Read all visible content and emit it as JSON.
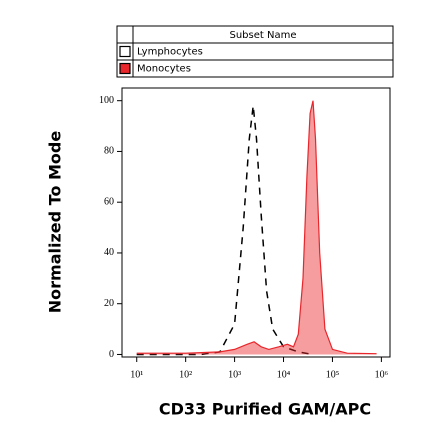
{
  "chart_data": {
    "type": "histogram-overlay",
    "xlabel": "CD33 Purified GAM/APC",
    "ylabel": "Normalized To Mode",
    "legend_title": "Subset Name",
    "xscale": "log",
    "xlim": [
      5,
      1500000
    ],
    "ylim": [
      -1,
      105
    ],
    "xticks": [
      {
        "value": 10,
        "label": "10¹"
      },
      {
        "value": 100,
        "label": "10²"
      },
      {
        "value": 1000,
        "label": "10³"
      },
      {
        "value": 10000,
        "label": "10⁴"
      },
      {
        "value": 100000,
        "label": "10⁵"
      },
      {
        "value": 1000000,
        "label": "10⁶"
      }
    ],
    "yticks": [
      0,
      20,
      40,
      60,
      80,
      100
    ],
    "series": [
      {
        "name": "Lymphocytes",
        "color": "#000000",
        "style": "dashed",
        "fill": false,
        "x": [
          10,
          200,
          500,
          1000,
          1500,
          2000,
          2400,
          2800,
          3500,
          4500,
          6000,
          10000,
          20000,
          40000
        ],
        "values": [
          0,
          0,
          1,
          12,
          50,
          85,
          98,
          85,
          55,
          25,
          10,
          3,
          1,
          0
        ]
      },
      {
        "name": "Monocytes",
        "color": "#e8262b",
        "style": "solid",
        "fill": true,
        "x": [
          10,
          100,
          500,
          1000,
          1800,
          2500,
          3500,
          5000,
          8000,
          12000,
          16000,
          20000,
          25000,
          30000,
          35000,
          40000,
          45000,
          55000,
          70000,
          100000,
          200000,
          800000
        ],
        "values": [
          0.5,
          0.5,
          1,
          2,
          4,
          5,
          3,
          2,
          3,
          4,
          3,
          8,
          30,
          70,
          95,
          100,
          85,
          40,
          10,
          2,
          0.5,
          0.3
        ]
      }
    ]
  }
}
